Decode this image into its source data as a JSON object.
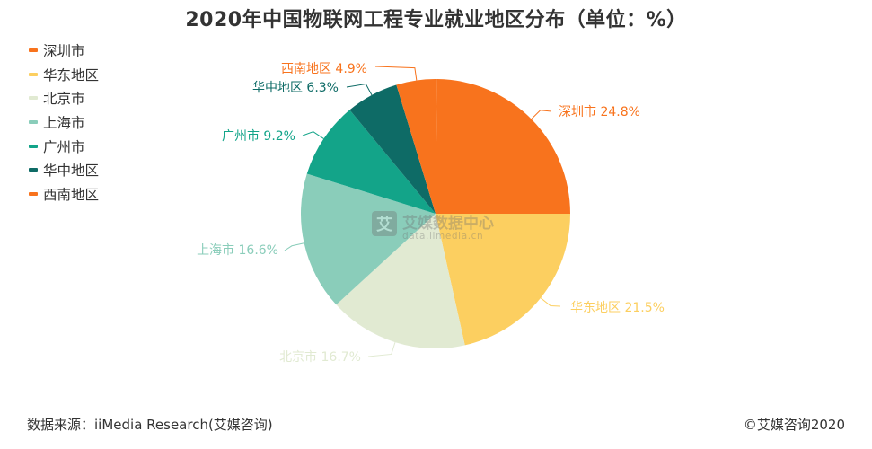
{
  "title": "2020年中国物联网工程专业就业地区分布（单位：%）",
  "legend": [
    {
      "label": "深圳市",
      "color": "#F8731D"
    },
    {
      "label": "华东地区",
      "color": "#FCCF60"
    },
    {
      "label": "北京市",
      "color": "#E1EAD2"
    },
    {
      "label": "上海市",
      "color": "#8ACDBA"
    },
    {
      "label": "广州市",
      "color": "#13A489"
    },
    {
      "label": "华中地区",
      "color": "#0E6B66"
    },
    {
      "label": "西南地区",
      "color": "#F8731D"
    }
  ],
  "slice_labels": [
    {
      "text": "华东地区 21.5%",
      "color": "#FCCF60"
    },
    {
      "text": "北京市 16.7%",
      "color": "#E1EAD2"
    },
    {
      "text": "上海市 16.6%",
      "color": "#8ACDBA"
    },
    {
      "text": "广州市 9.2%",
      "color": "#13A489"
    },
    {
      "text": "华中地区 6.3%",
      "color": "#0E6B66"
    },
    {
      "text": "西南地区 4.9%",
      "color": "#F8731D"
    },
    {
      "text": "深圳市 24.8%",
      "color": "#F8731D"
    }
  ],
  "watermark": {
    "brand": "艾媒数据中心",
    "url": "data.iimedia.cn"
  },
  "footer": {
    "source": "数据来源：iiMedia Research(艾媒咨询)",
    "copyright": "©艾媒咨询2020"
  },
  "chart_data": {
    "type": "pie",
    "title": "2020年中国物联网工程专业就业地区分布（单位：%）",
    "categories": [
      "深圳市",
      "华东地区",
      "北京市",
      "上海市",
      "广州市",
      "华中地区",
      "西南地区"
    ],
    "values": [
      24.8,
      21.5,
      16.7,
      16.6,
      9.2,
      6.3,
      4.9
    ],
    "colors": [
      "#F8731D",
      "#FCCF60",
      "#E1EAD2",
      "#8ACDBA",
      "#13A489",
      "#0E6B66",
      "#F8731D"
    ],
    "unit": "%",
    "legend_position": "top-left",
    "start_angle_deg": 0,
    "direction": "clockwise"
  }
}
